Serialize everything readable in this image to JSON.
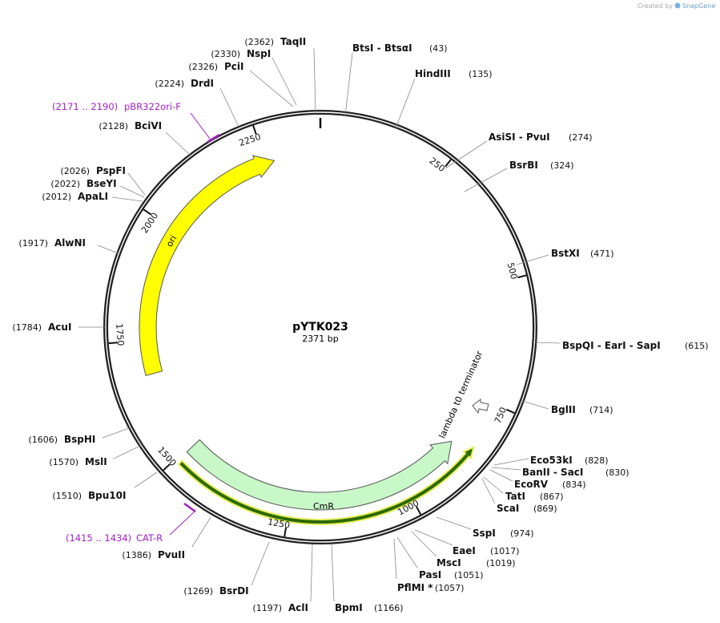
{
  "header": {
    "credit": "Created by",
    "brand": "SnapGene"
  },
  "plasmid": {
    "name": "pYTK023",
    "length": "2371 bp"
  },
  "sites": [
    {
      "name": "TaqII",
      "position": "(2362)"
    },
    {
      "name": "NspI",
      "position": "(2330)"
    },
    {
      "name": "PciI",
      "position": "(2326)"
    },
    {
      "name": "DrdI",
      "position": "(2224)"
    },
    {
      "name": "BciVI",
      "position": "(2128)"
    },
    {
      "name": "PspFI",
      "position": "(2026)"
    },
    {
      "name": "BseYI",
      "position": "(2022)"
    },
    {
      "name": "ApaLI",
      "position": "(2012)"
    },
    {
      "name": "AlwNI",
      "position": "(1917)"
    },
    {
      "name": "AcuI",
      "position": "(1784)"
    },
    {
      "name": "BspHI",
      "position": "(1606)"
    },
    {
      "name": "MslI",
      "position": "(1570)"
    },
    {
      "name": "Bpu10I",
      "position": "(1510)"
    },
    {
      "name": "PvuII",
      "position": "(1386)"
    },
    {
      "name": "BsrDI",
      "position": "(1269)"
    },
    {
      "name": "AclI",
      "position": "(1197)"
    },
    {
      "name": "BpmI",
      "position": "(1166)"
    },
    {
      "name": "PflMI *",
      "position": "(1057)"
    },
    {
      "name": "PasI",
      "position": "(1051)"
    },
    {
      "name": "MscI",
      "position": "(1019)"
    },
    {
      "name": "EaeI",
      "position": "(1017)"
    },
    {
      "name": "SspI",
      "position": "(974)"
    },
    {
      "name": "ScaI",
      "position": "(869)"
    },
    {
      "name": "TatI",
      "position": "(867)"
    },
    {
      "name": "EcoRV",
      "position": "(834)"
    },
    {
      "name": "BanII - SacI",
      "position": "(830)"
    },
    {
      "name": "Eco53kI",
      "position": "(828)"
    },
    {
      "name": "BglII",
      "position": "(714)"
    },
    {
      "name": "BspQI - EarI - SapI",
      "position": "(615)"
    },
    {
      "name": "BstXI",
      "position": "(471)"
    },
    {
      "name": "BsrBI",
      "position": "(324)"
    },
    {
      "name": "AsiSI - PvuI",
      "position": "(274)"
    },
    {
      "name": "HindIII",
      "position": "(135)"
    },
    {
      "name": "BtsI - BtsαI",
      "position": "(43)"
    }
  ],
  "primers": [
    {
      "name": "pBR322ori-F",
      "position": "(2171 .. 2190)"
    },
    {
      "name": "CAT-R",
      "position": "(1415 .. 1434)"
    }
  ],
  "features": [
    {
      "label": "ori"
    },
    {
      "label": "CmR"
    },
    {
      "label": "lambda t0 terminator"
    }
  ],
  "ruler": [
    "250",
    "500",
    "750",
    "1000",
    "1250",
    "1500",
    "1750",
    "2000",
    "2250"
  ]
}
